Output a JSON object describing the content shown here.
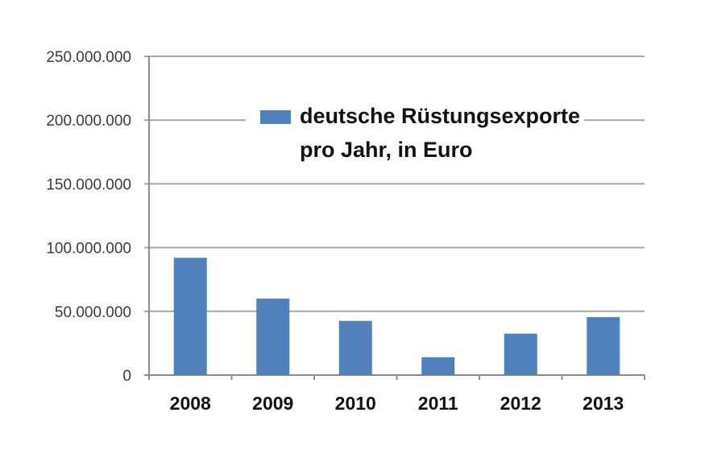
{
  "chart_data": {
    "type": "bar",
    "categories": [
      "2008",
      "2009",
      "2010",
      "2011",
      "2012",
      "2013"
    ],
    "series": [
      {
        "name": "deutsche Rüstungsexporte pro Jahr, in Euro",
        "legend_lines": [
          "deutsche Rüstungsexporte",
          "pro Jahr, in Euro"
        ],
        "values": [
          92000000,
          60000000,
          42500000,
          14000000,
          32500000,
          45500000
        ],
        "color": "#4f81bd"
      }
    ],
    "y_ticks": [
      {
        "value": 0,
        "label": "0"
      },
      {
        "value": 50000000,
        "label": "50.000.000"
      },
      {
        "value": 100000000,
        "label": "100.000.000"
      },
      {
        "value": 150000000,
        "label": "150.000.000"
      },
      {
        "value": 200000000,
        "label": "200.000.000"
      },
      {
        "value": 250000000,
        "label": "250.000.000"
      }
    ],
    "ylim": [
      0,
      250000000
    ],
    "grid": true,
    "legend_position": "top-center",
    "colors": {
      "bar": "#4f81bd",
      "grid": "#a6a6a6",
      "axis": "#8c8c8c"
    }
  }
}
